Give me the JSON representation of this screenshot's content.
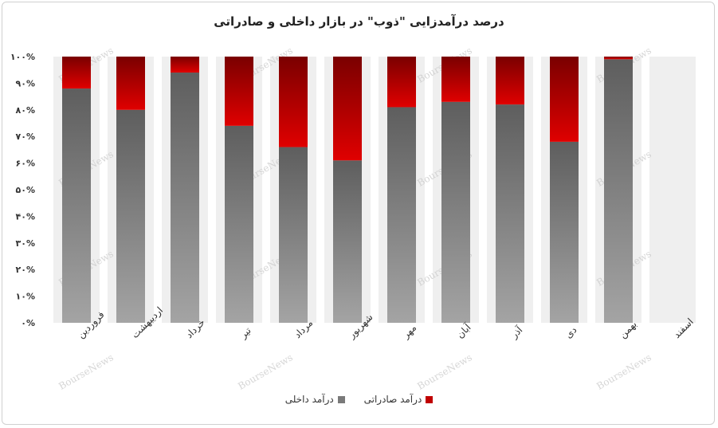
{
  "chart_data": {
    "type": "bar",
    "stacked": "percent",
    "title": "درصد درآمدزایی \"ذوب\" در بازار داخلی و صادراتی",
    "categories": [
      "فروردین",
      "اردیبهشت",
      "خرداد",
      "تیر",
      "مرداد",
      "شهریور",
      "مهر",
      "آبان",
      "آذر",
      "دی",
      "بهمن",
      "اسفند"
    ],
    "series": [
      {
        "name": "درآمد داخلی",
        "values": [
          88,
          80,
          94,
          74,
          66,
          61,
          81,
          83,
          82,
          68,
          99,
          null
        ],
        "color": "#8a8a8a"
      },
      {
        "name": "درآمد صادراتی",
        "values": [
          12,
          20,
          6,
          26,
          34,
          39,
          19,
          17,
          18,
          32,
          1,
          null
        ],
        "color": "#c00000"
      }
    ],
    "y_ticks": [
      "۰%",
      "۱۰%",
      "۲۰%",
      "۳۰%",
      "۴۰%",
      "۵۰%",
      "۶۰%",
      "۷۰%",
      "۸۰%",
      "۹۰%",
      "۱۰۰%"
    ],
    "ylim": [
      0,
      100
    ],
    "legend_position": "bottom",
    "grid": false,
    "watermark": "BourseNews"
  }
}
